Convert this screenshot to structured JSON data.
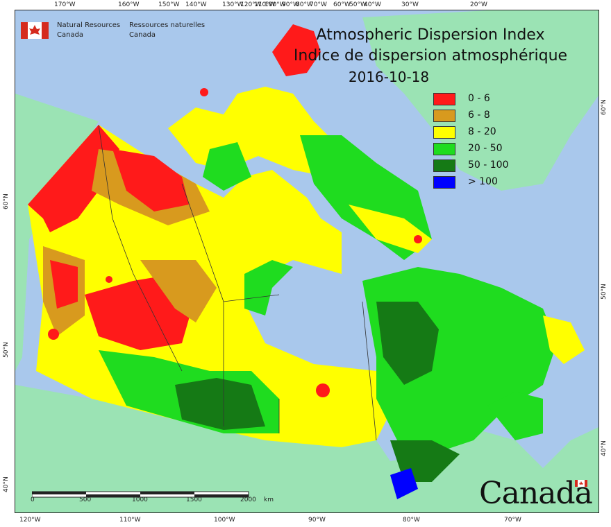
{
  "title": {
    "english": "Atmospheric Dispersion Index",
    "french": "Indice de dispersion atmosphérique",
    "date": "2016-10-18"
  },
  "agency": {
    "name_en_line1": "Natural Resources",
    "name_en_line2": "Canada",
    "name_fr_line1": "Ressources naturelles",
    "name_fr_line2": "Canada"
  },
  "wordmark": "Canada",
  "legend": [
    {
      "label": "0 - 6",
      "color": "#ff1a1a"
    },
    {
      "label": "6 - 8",
      "color": "#d89a1e"
    },
    {
      "label": "8 - 20",
      "color": "#ffff00"
    },
    {
      "label": "20 - 50",
      "color": "#1fdc1f"
    },
    {
      "label": "50 - 100",
      "color": "#157a15"
    },
    {
      "label": "> 100",
      "color": "#0000ff"
    }
  ],
  "colors": {
    "ocean": "#a9c8ec",
    "land_outside": "#9be3b4",
    "greenland": "#9be3b4"
  },
  "graticule": {
    "top": [
      "170°W",
      "160°W",
      "150°W",
      "140°W",
      "130°W",
      "120°W",
      "110°W",
      "100°W",
      "90°W",
      "80°W",
      "70°W",
      "60°W",
      "50°W",
      "40°W",
      "30°W",
      "20°W"
    ],
    "bottom": [
      "120°W",
      "110°W",
      "100°W",
      "90°W",
      "80°W",
      "70°W"
    ],
    "left": [
      "60°N",
      "50°N",
      "40°N"
    ],
    "right": [
      "60°N",
      "50°N",
      "40°N"
    ]
  },
  "scale_bar": {
    "ticks": [
      "0",
      "500",
      "1000",
      "1500",
      "2000"
    ],
    "unit": "km"
  }
}
